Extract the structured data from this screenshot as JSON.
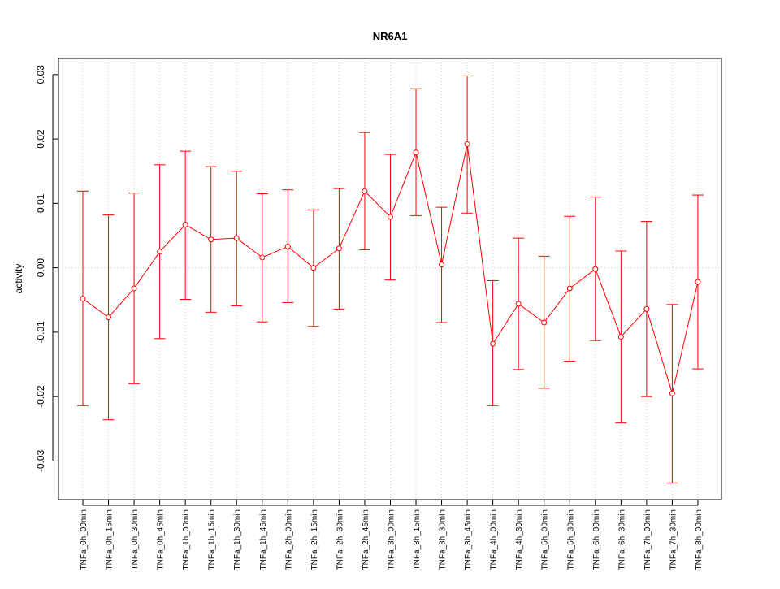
{
  "chart_data": {
    "type": "line",
    "title": "NR6A1",
    "xlabel": "",
    "ylabel": "activity",
    "ylim": [
      -0.036,
      0.0325
    ],
    "yticks": [
      "-0.03",
      "-0.02",
      "-0.01",
      "0.00",
      "0.01",
      "0.02",
      "0.03"
    ],
    "grid": true,
    "series_color": "#ff0000",
    "grid_color": "#d3d3d3",
    "categories": [
      "TNFa_0h_00min",
      "TNFa_0h_15min",
      "TNFa_0h_30min",
      "TNFa_0h_45min",
      "TNFa_1h_00min",
      "TNFa_1h_15min",
      "TNFa_1h_30min",
      "TNFa_1h_45min",
      "TNFa_2h_00min",
      "TNFa_2h_15min",
      "TNFa_2h_30min",
      "TNFa_2h_45min",
      "TNFa_3h_00min",
      "TNFa_3h_15min",
      "TNFa_3h_30min",
      "TNFa_3h_45min",
      "TNFa_4h_00min",
      "TNFa_4h_30min",
      "TNFa_5h_00min",
      "TNFa_5h_30min",
      "TNFa_6h_00min",
      "TNFa_6h_30min",
      "TNFa_7h_00min",
      "TNFa_7h_30min",
      "TNFa_8h_00min"
    ],
    "values": [
      -0.0048,
      -0.0077,
      -0.0032,
      0.0025,
      0.0067,
      0.0044,
      0.0046,
      0.0016,
      0.0033,
      0.0,
      0.003,
      0.0119,
      0.0079,
      0.0179,
      0.0005,
      0.0192,
      -0.0118,
      -0.0056,
      -0.0085,
      -0.0032,
      -0.0002,
      -0.0107,
      -0.0064,
      -0.0195,
      -0.0022
    ],
    "upper": [
      0.0119,
      0.0082,
      0.0116,
      0.016,
      0.0181,
      0.0157,
      0.015,
      0.0115,
      0.0121,
      0.009,
      0.0123,
      0.021,
      0.0176,
      0.0278,
      0.0094,
      0.0298,
      -0.002,
      0.0046,
      0.0018,
      0.008,
      0.011,
      0.0026,
      0.0072,
      -0.0057,
      0.0113
    ],
    "lower": [
      -0.0214,
      -0.0236,
      -0.018,
      -0.011,
      -0.0049,
      -0.0069,
      -0.0059,
      -0.0084,
      -0.0054,
      -0.0091,
      -0.0064,
      0.0028,
      -0.0019,
      0.0081,
      -0.0085,
      0.0085,
      -0.0214,
      -0.0158,
      -0.0187,
      -0.0145,
      -0.0113,
      -0.0241,
      -0.02,
      -0.0334,
      -0.0157
    ]
  }
}
